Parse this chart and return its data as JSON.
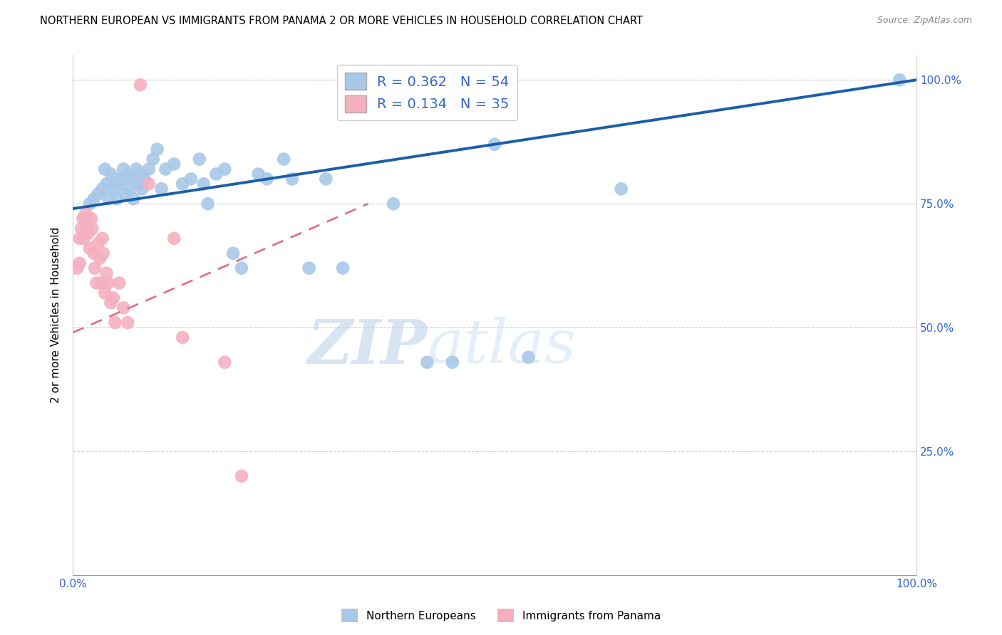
{
  "title": "NORTHERN EUROPEAN VS IMMIGRANTS FROM PANAMA 2 OR MORE VEHICLES IN HOUSEHOLD CORRELATION CHART",
  "source": "Source: ZipAtlas.com",
  "ylabel": "2 or more Vehicles in Household",
  "ytick_labels": [
    "",
    "25.0%",
    "50.0%",
    "75.0%",
    "100.0%"
  ],
  "ytick_positions": [
    0.0,
    0.25,
    0.5,
    0.75,
    1.0
  ],
  "xlim": [
    0.0,
    1.0
  ],
  "ylim": [
    0.0,
    1.05
  ],
  "blue_R": "0.362",
  "blue_N": "54",
  "pink_R": "0.134",
  "pink_N": "35",
  "blue_color": "#a8c8e8",
  "blue_line_color": "#1a5fa8",
  "pink_color": "#f5b0c0",
  "pink_line_color": "#e07090",
  "watermark_ZIP": "ZIP",
  "watermark_atlas": "atlas",
  "legend_label_blue": "Northern Europeans",
  "legend_label_pink": "Immigrants from Panama",
  "blue_points": [
    [
      0.015,
      0.72
    ],
    [
      0.02,
      0.75
    ],
    [
      0.025,
      0.76
    ],
    [
      0.03,
      0.77
    ],
    [
      0.035,
      0.78
    ],
    [
      0.038,
      0.82
    ],
    [
      0.04,
      0.79
    ],
    [
      0.042,
      0.76
    ],
    [
      0.045,
      0.81
    ],
    [
      0.048,
      0.78
    ],
    [
      0.05,
      0.8
    ],
    [
      0.052,
      0.76
    ],
    [
      0.055,
      0.79
    ],
    [
      0.058,
      0.8
    ],
    [
      0.06,
      0.82
    ],
    [
      0.062,
      0.77
    ],
    [
      0.065,
      0.81
    ],
    [
      0.068,
      0.78
    ],
    [
      0.07,
      0.8
    ],
    [
      0.072,
      0.76
    ],
    [
      0.075,
      0.82
    ],
    [
      0.078,
      0.79
    ],
    [
      0.08,
      0.81
    ],
    [
      0.082,
      0.78
    ],
    [
      0.085,
      0.8
    ],
    [
      0.09,
      0.82
    ],
    [
      0.095,
      0.84
    ],
    [
      0.1,
      0.86
    ],
    [
      0.105,
      0.78
    ],
    [
      0.11,
      0.82
    ],
    [
      0.12,
      0.83
    ],
    [
      0.13,
      0.79
    ],
    [
      0.14,
      0.8
    ],
    [
      0.15,
      0.84
    ],
    [
      0.155,
      0.79
    ],
    [
      0.16,
      0.75
    ],
    [
      0.17,
      0.81
    ],
    [
      0.18,
      0.82
    ],
    [
      0.19,
      0.65
    ],
    [
      0.2,
      0.62
    ],
    [
      0.22,
      0.81
    ],
    [
      0.23,
      0.8
    ],
    [
      0.25,
      0.84
    ],
    [
      0.26,
      0.8
    ],
    [
      0.28,
      0.62
    ],
    [
      0.3,
      0.8
    ],
    [
      0.32,
      0.62
    ],
    [
      0.38,
      0.75
    ],
    [
      0.42,
      0.43
    ],
    [
      0.45,
      0.43
    ],
    [
      0.5,
      0.87
    ],
    [
      0.54,
      0.44
    ],
    [
      0.65,
      0.78
    ],
    [
      0.98,
      1.0
    ]
  ],
  "pink_points": [
    [
      0.005,
      0.62
    ],
    [
      0.008,
      0.68
    ],
    [
      0.008,
      0.63
    ],
    [
      0.01,
      0.7
    ],
    [
      0.012,
      0.72
    ],
    [
      0.013,
      0.68
    ],
    [
      0.015,
      0.73
    ],
    [
      0.016,
      0.7
    ],
    [
      0.018,
      0.69
    ],
    [
      0.02,
      0.66
    ],
    [
      0.022,
      0.72
    ],
    [
      0.023,
      0.7
    ],
    [
      0.025,
      0.65
    ],
    [
      0.026,
      0.62
    ],
    [
      0.028,
      0.59
    ],
    [
      0.03,
      0.67
    ],
    [
      0.032,
      0.64
    ],
    [
      0.033,
      0.59
    ],
    [
      0.035,
      0.68
    ],
    [
      0.036,
      0.65
    ],
    [
      0.038,
      0.57
    ],
    [
      0.04,
      0.61
    ],
    [
      0.042,
      0.59
    ],
    [
      0.045,
      0.55
    ],
    [
      0.048,
      0.56
    ],
    [
      0.05,
      0.51
    ],
    [
      0.055,
      0.59
    ],
    [
      0.06,
      0.54
    ],
    [
      0.065,
      0.51
    ],
    [
      0.08,
      0.99
    ],
    [
      0.09,
      0.79
    ],
    [
      0.12,
      0.68
    ],
    [
      0.13,
      0.48
    ],
    [
      0.18,
      0.43
    ],
    [
      0.2,
      0.2
    ]
  ]
}
